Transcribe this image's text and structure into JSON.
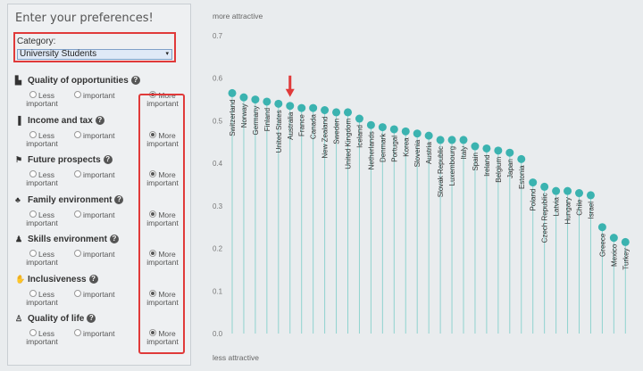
{
  "panel": {
    "title": "Enter your preferences!",
    "category_label": "Category:",
    "category_value": "University Students",
    "select_arrow": "▾",
    "option_less_line1": "Less",
    "option_less_line2": "important",
    "option_important": "important",
    "option_more_line1": "More",
    "option_more_line2": "important",
    "help_glyph": "?",
    "criteria": [
      {
        "label": "Quality of opportunities",
        "icon": "building-icon"
      },
      {
        "label": "Income and tax",
        "icon": "bar-chart-icon"
      },
      {
        "label": "Future prospects",
        "icon": "signpost-icon"
      },
      {
        "label": "Family environment",
        "icon": "family-icon"
      },
      {
        "label": "Skills environment",
        "icon": "people-icon"
      },
      {
        "label": "Inclusiveness",
        "icon": "handshake-icon"
      },
      {
        "label": "Quality of life",
        "icon": "figure-icon"
      }
    ]
  },
  "colors": {
    "highlight": "#e03a3a",
    "accent": "#3bb3b0",
    "stem": "#8fd3cf"
  },
  "chart_data": {
    "type": "scatter",
    "style": "lollipop",
    "top_label": "more attractive",
    "bottom_label": "less attractive",
    "ylim": [
      0,
      0.7
    ],
    "yticks": [
      "0.0",
      "0.1",
      "0.2",
      "0.3",
      "0.4",
      "0.5",
      "0.6",
      "0.7"
    ],
    "categories": [
      "Switzerland",
      "Norway",
      "Germany",
      "Finland",
      "United States",
      "Australia",
      "France",
      "Canada",
      "New Zealand",
      "Sweden",
      "United Kingdom",
      "Iceland",
      "Netherlands",
      "Denmark",
      "Portugal",
      "Korea",
      "Slovenia",
      "Austria",
      "Slovak Republic",
      "Luxembourg",
      "Italy",
      "Spain",
      "Ireland",
      "Belgium",
      "Japan",
      "Estonia",
      "Poland",
      "Czech Republic",
      "Latvia",
      "Hungary",
      "Chile",
      "Israel",
      "Greece",
      "Mexico",
      "Turkey"
    ],
    "values": [
      0.565,
      0.555,
      0.55,
      0.545,
      0.54,
      0.535,
      0.53,
      0.53,
      0.525,
      0.52,
      0.52,
      0.505,
      0.49,
      0.485,
      0.48,
      0.475,
      0.47,
      0.465,
      0.455,
      0.455,
      0.455,
      0.44,
      0.435,
      0.43,
      0.425,
      0.41,
      0.355,
      0.345,
      0.335,
      0.335,
      0.33,
      0.325,
      0.25,
      0.225,
      0.215
    ],
    "highlight_index": 5
  }
}
